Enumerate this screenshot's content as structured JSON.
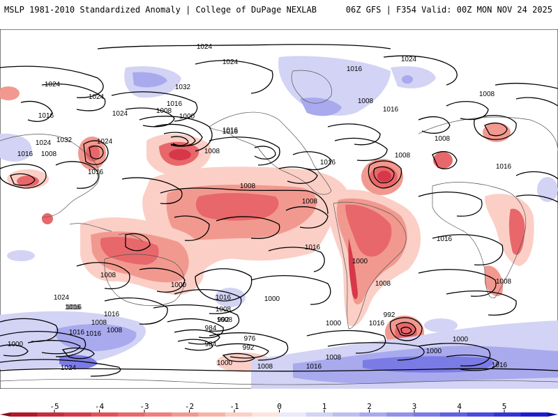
{
  "header": {
    "left_title": "MSLP 1981-2010 Standardized Anomaly | College of DuPage NEXLAB",
    "right_title": "06Z GFS | F354 Valid: 00Z MON NOV 24 2025"
  },
  "isobar_labels": [
    "1024",
    "1024",
    "1024",
    "1024",
    "1016",
    "1032",
    "1016",
    "1008",
    "1000",
    "1016",
    "1024",
    "1016",
    "1032",
    "1024",
    "1016",
    "1024",
    "1008",
    "1016",
    "1016",
    "1008",
    "1024",
    "1016",
    "1008",
    "1008",
    "1008",
    "1008",
    "1016",
    "1008",
    "1008",
    "1016",
    "1016",
    "1000",
    "1016",
    "1008",
    "1000",
    "1016",
    "1000",
    "1008",
    "1008",
    "1024",
    "1016",
    "1016",
    "1008",
    "1016",
    "992",
    "1008",
    "984",
    "976",
    "992",
    "984",
    "1000",
    "1008",
    "1016",
    "992",
    "1000",
    "1000",
    "1000",
    "1024",
    "1000",
    "1008",
    "1016",
    "1008",
    "1016",
    "1016",
    "1008",
    "1016"
  ],
  "colorbar": {
    "ticks": [
      "-5",
      "-4",
      "-3",
      "-2",
      "-1",
      "0",
      "1",
      "2",
      "3",
      "4",
      "5"
    ],
    "colors": [
      "#b2182b",
      "#d6384a",
      "#e8676a",
      "#f2998f",
      "#fbcfc6",
      "#ffffff",
      "#d3d3f5",
      "#a9a9ee",
      "#7b7be6",
      "#4a4add",
      "#1d1dd0"
    ]
  }
}
